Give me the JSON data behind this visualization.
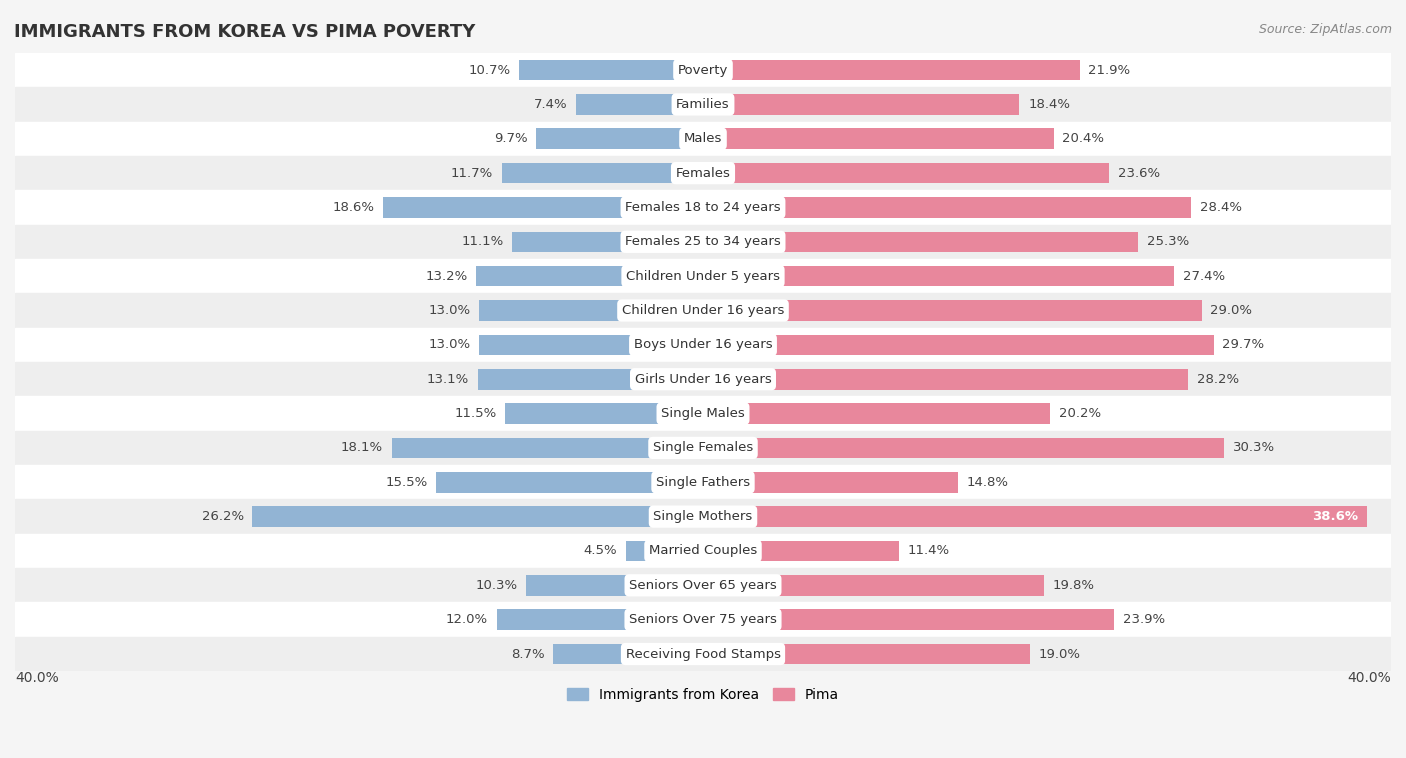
{
  "title": "IMMIGRANTS FROM KOREA VS PIMA POVERTY",
  "source": "Source: ZipAtlas.com",
  "categories": [
    "Poverty",
    "Families",
    "Males",
    "Females",
    "Females 18 to 24 years",
    "Females 25 to 34 years",
    "Children Under 5 years",
    "Children Under 16 years",
    "Boys Under 16 years",
    "Girls Under 16 years",
    "Single Males",
    "Single Females",
    "Single Fathers",
    "Single Mothers",
    "Married Couples",
    "Seniors Over 65 years",
    "Seniors Over 75 years",
    "Receiving Food Stamps"
  ],
  "korea_values": [
    10.7,
    7.4,
    9.7,
    11.7,
    18.6,
    11.1,
    13.2,
    13.0,
    13.0,
    13.1,
    11.5,
    18.1,
    15.5,
    26.2,
    4.5,
    10.3,
    12.0,
    8.7
  ],
  "pima_values": [
    21.9,
    18.4,
    20.4,
    23.6,
    28.4,
    25.3,
    27.4,
    29.0,
    29.7,
    28.2,
    20.2,
    30.3,
    14.8,
    38.6,
    11.4,
    19.8,
    23.9,
    19.0
  ],
  "korea_color": "#92b4d4",
  "pima_color": "#e8879c",
  "row_color_even": "#ffffff",
  "row_color_odd": "#eeeeee",
  "xlim": 40.0,
  "bar_height": 0.6,
  "label_fontsize": 9.5,
  "title_fontsize": 13,
  "legend_label_korea": "Immigrants from Korea",
  "legend_label_pima": "Pima",
  "axis_label_left": "40.0%",
  "axis_label_right": "40.0%"
}
